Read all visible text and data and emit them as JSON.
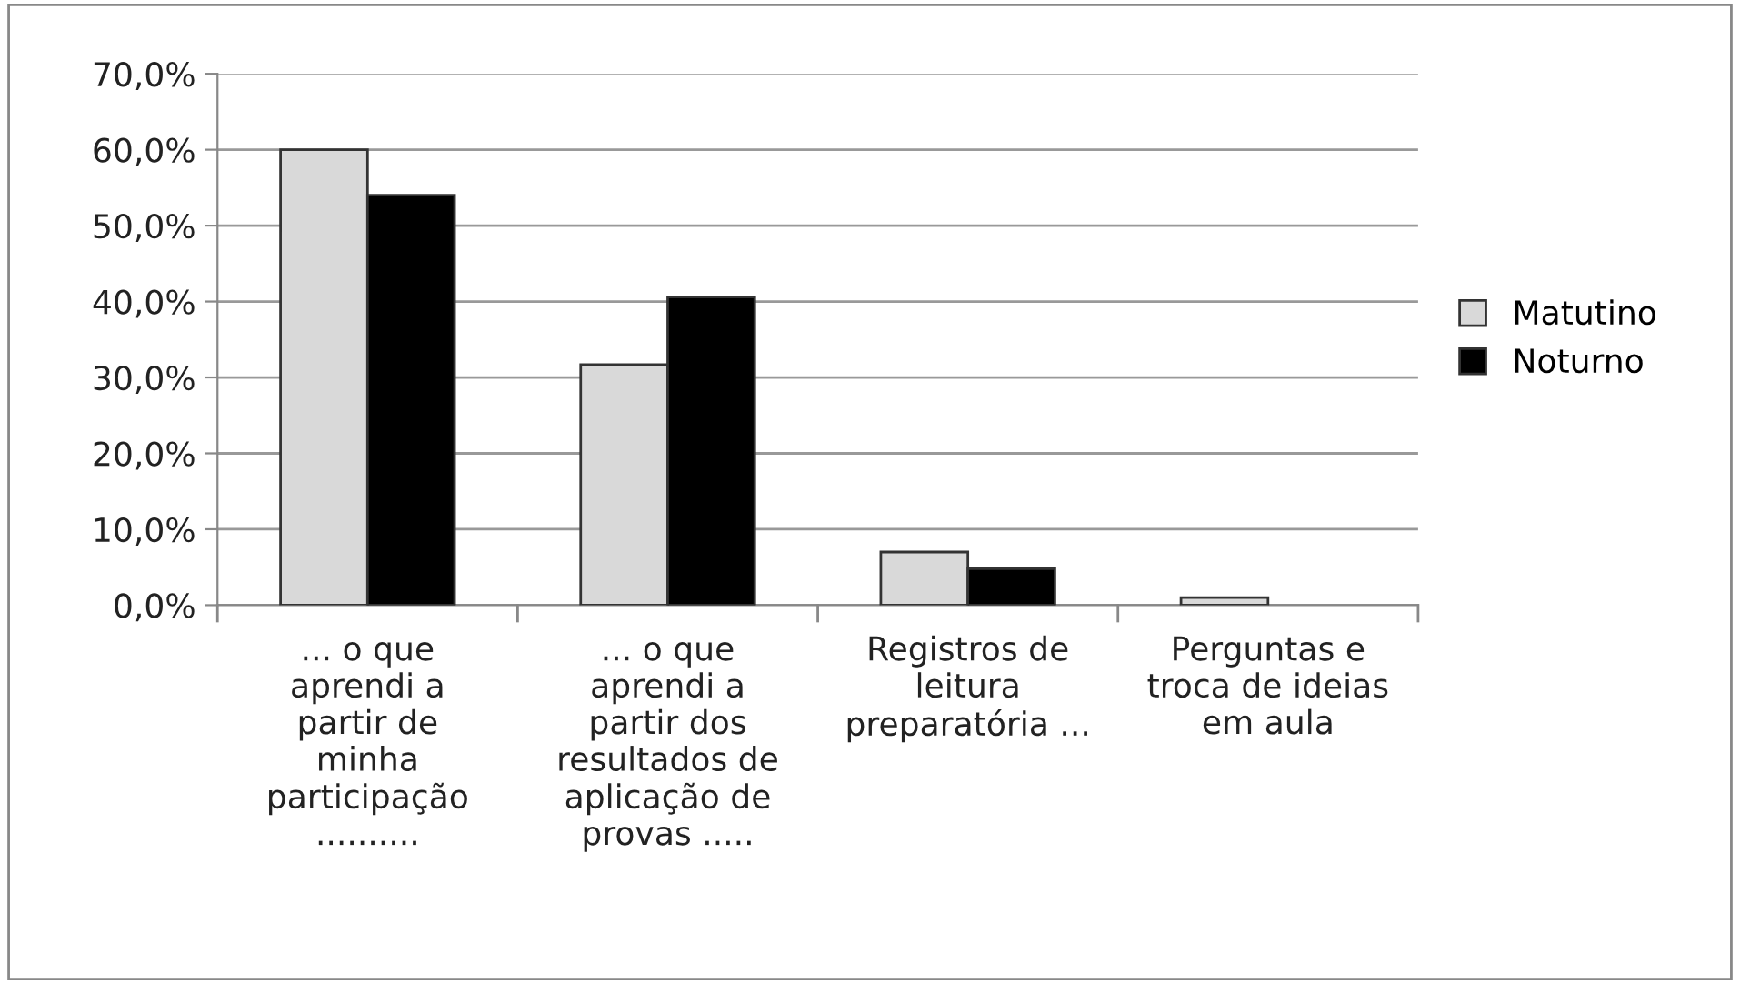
{
  "chart_data": {
    "type": "bar",
    "categories": [
      "... o que\naprendi a\npartir de\nminha\nparticipação\n..........",
      "... o que\naprendi a\npartir dos\nresultados de\naplicação de\nprovas .....",
      "Registros de\nleitura\npreparatória ...",
      "Perguntas e\ntroca de ideias\nem aula"
    ],
    "series": [
      {
        "name": "Matutino",
        "color": "#d9d9d9",
        "values": [
          60.0,
          31.7,
          7.0,
          1.0
        ]
      },
      {
        "name": "Noturno",
        "color": "#000000",
        "values": [
          54.0,
          40.6,
          4.8,
          null
        ]
      }
    ],
    "ylim": [
      0,
      70
    ],
    "yticks": [
      {
        "value": 0,
        "label": "0,0%"
      },
      {
        "value": 10,
        "label": "10,0%"
      },
      {
        "value": 20,
        "label": "20,0%"
      },
      {
        "value": 30,
        "label": "30,0%"
      },
      {
        "value": 40,
        "label": "40,0%"
      },
      {
        "value": 50,
        "label": "50,0%"
      },
      {
        "value": 60,
        "label": "60,0%"
      },
      {
        "value": 70,
        "label": "70,0%"
      }
    ],
    "grid": "y",
    "legend": "right"
  }
}
